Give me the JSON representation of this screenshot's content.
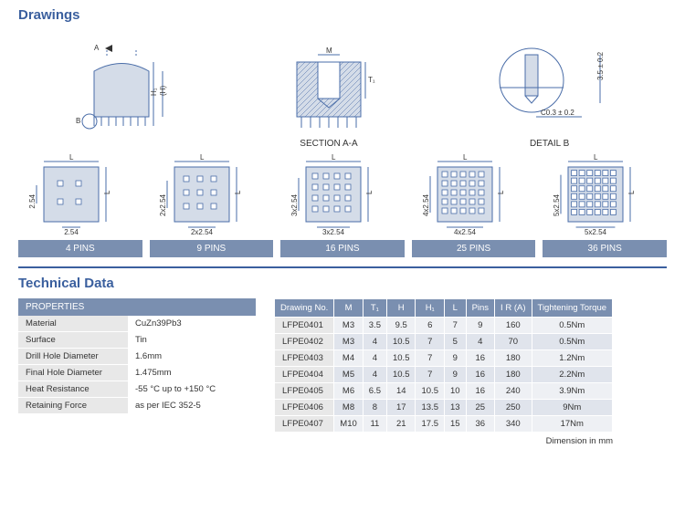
{
  "sections": {
    "drawings_title": "Drawings",
    "tech_data_title": "Technical Data"
  },
  "drawing_labels": {
    "section": "SECTION A-A",
    "detail": "DETAIL B",
    "section_dim_m": "M",
    "section_dim_t": "T₁",
    "detail_dim1": "3.5 ± 0.2",
    "detail_dim2": "C0.3 ± 0.2",
    "side_dim_h": "(H)",
    "side_dim_h1": "H₁",
    "side_a": "A",
    "side_b": "B"
  },
  "pin_variants": [
    {
      "label": "4 PINS",
      "dim_h": "2.54",
      "dim_v": "2.54",
      "grid": 2,
      "L": "L"
    },
    {
      "label": "9 PINS",
      "dim_h": "2x2.54",
      "dim_v": "2x2.54",
      "grid": 3,
      "L": "L"
    },
    {
      "label": "16 PINS",
      "dim_h": "3x2.54",
      "dim_v": "3x2.54",
      "grid": 4,
      "L": "L"
    },
    {
      "label": "25 PINS",
      "dim_h": "4x2.54",
      "dim_v": "4x2.54",
      "grid": 5,
      "L": "L"
    },
    {
      "label": "36 PINS",
      "dim_h": "5x2.54",
      "dim_v": "5x2.54",
      "grid": 6,
      "L": "L"
    }
  ],
  "properties": {
    "header": "PROPERTIES",
    "rows": [
      {
        "label": "Material",
        "value": "CuZn39Pb3"
      },
      {
        "label": "Surface",
        "value": "Tin"
      },
      {
        "label": "Drill Hole Diameter",
        "value": "1.6mm"
      },
      {
        "label": "Final Hole Diameter",
        "value": "1.475mm"
      },
      {
        "label": "Heat Resistance",
        "value": "-55 °C up to +150 °C"
      },
      {
        "label": "Retaining Force",
        "value": "as per IEC 352-5"
      }
    ]
  },
  "data_table": {
    "columns": [
      "Drawing No.",
      "M",
      "T₁",
      "H",
      "H₁",
      "L",
      "Pins",
      "I R (A)",
      "Tightening Torque"
    ],
    "rows": [
      [
        "LFPE0401",
        "M3",
        "3.5",
        "9.5",
        "6",
        "7",
        "9",
        "160",
        "0.5Nm"
      ],
      [
        "LFPE0402",
        "M3",
        "4",
        "10.5",
        "7",
        "5",
        "4",
        "70",
        "0.5Nm"
      ],
      [
        "LFPE0403",
        "M4",
        "4",
        "10.5",
        "7",
        "9",
        "16",
        "180",
        "1.2Nm"
      ],
      [
        "LFPE0404",
        "M5",
        "4",
        "10.5",
        "7",
        "9",
        "16",
        "180",
        "2.2Nm"
      ],
      [
        "LFPE0405",
        "M6",
        "6.5",
        "14",
        "10.5",
        "10",
        "16",
        "240",
        "3.9Nm"
      ],
      [
        "LFPE0406",
        "M8",
        "8",
        "17",
        "13.5",
        "13",
        "25",
        "250",
        "9Nm"
      ],
      [
        "LFPE0407",
        "M10",
        "11",
        "21",
        "17.5",
        "15",
        "36",
        "340",
        "17Nm"
      ]
    ]
  },
  "footnote": "Dimension in mm",
  "colors": {
    "title": "#3a5f9e",
    "header_bg": "#7a8fb0",
    "line": "#4a6da8",
    "fill": "#d4dce8"
  }
}
